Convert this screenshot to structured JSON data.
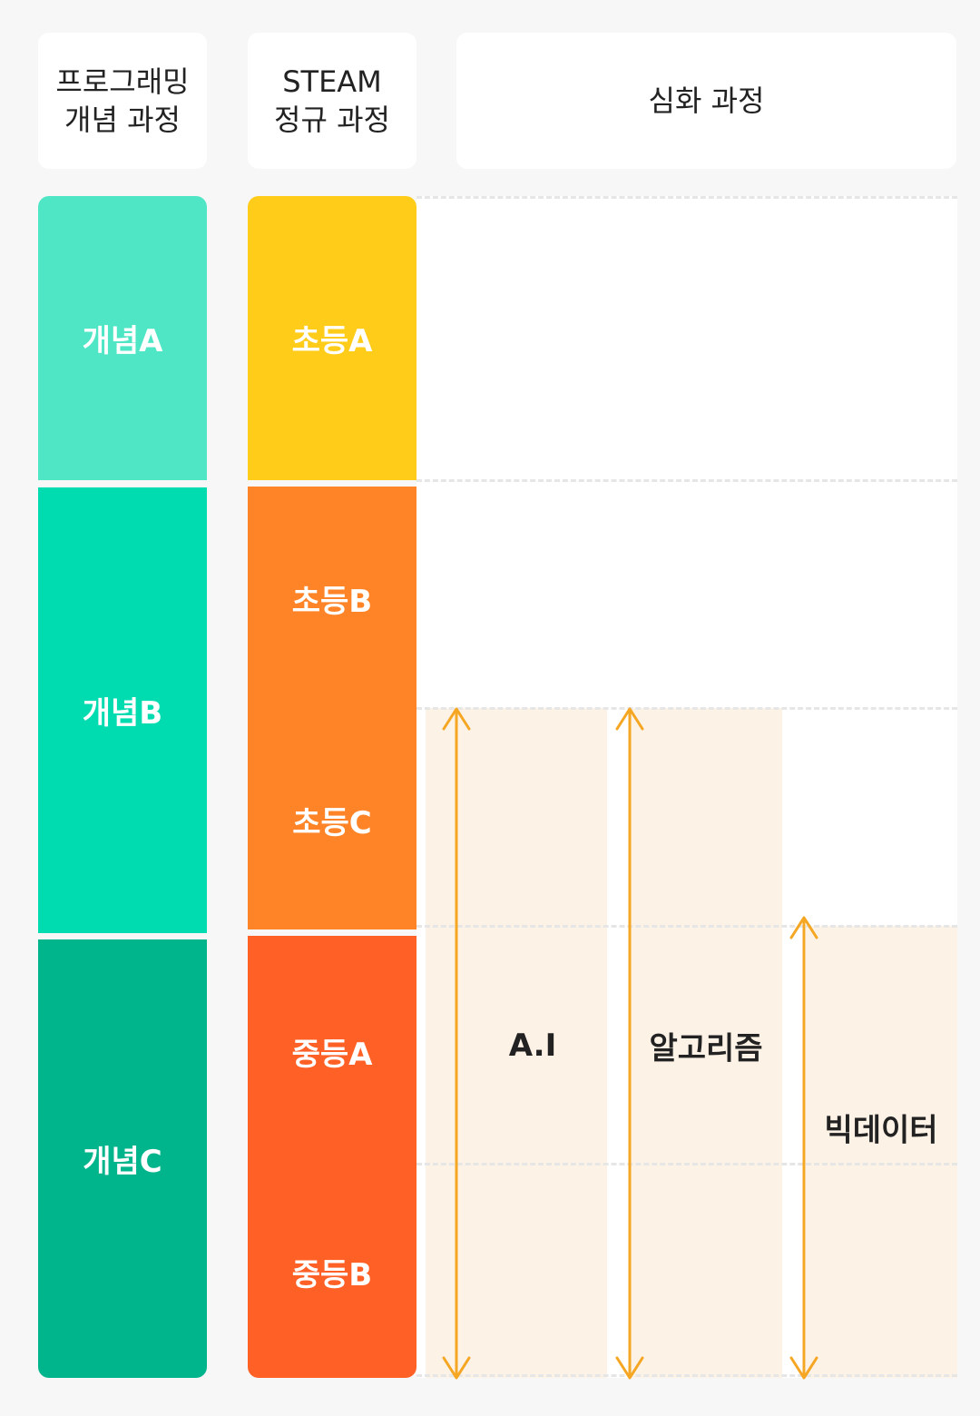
{
  "headers": {
    "concept": "프로그래밍\n개념 과정",
    "steam": "STEAM\n정규 과정",
    "advanced": "심화 과정"
  },
  "concept_blocks": [
    {
      "label": "개념A",
      "color": "#4fe6c5"
    },
    {
      "label": "개념B",
      "color": "#00dbb0"
    },
    {
      "label": "개념C",
      "color": "#00b48c"
    }
  ],
  "steam_blocks": [
    {
      "label": "초등A",
      "color": "#ffcc1a"
    },
    {
      "label": "초등B",
      "color": "#ff8427"
    },
    {
      "label": "초등C",
      "color": "#ff8427"
    },
    {
      "label": "중등A",
      "color": "#ff6026"
    },
    {
      "label": "중등B",
      "color": "#ff6026"
    }
  ],
  "advanced_tracks": [
    {
      "label": "A.I",
      "from": "초등C",
      "to": "중등B"
    },
    {
      "label": "알고리즘",
      "from": "초등C",
      "to": "중등B"
    },
    {
      "label": "빅데이터",
      "from": "중등A",
      "to": "중등B"
    }
  ],
  "colors": {
    "arrow": "#f5a623",
    "band": "#fdf2e6",
    "divider": "#e6e6e6"
  }
}
